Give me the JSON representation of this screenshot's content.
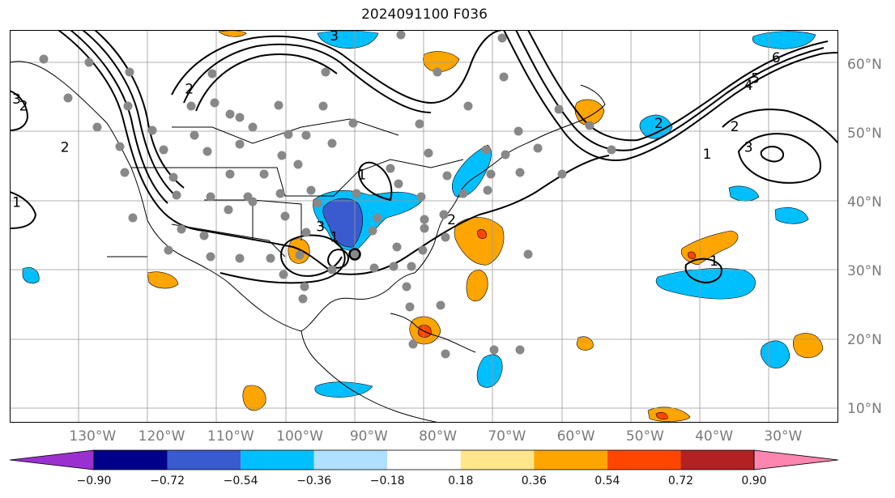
{
  "title": "2024091100 F036",
  "longitudes": [
    {
      "label": "130°W",
      "lon": -130
    },
    {
      "label": "120°W",
      "lon": -120
    },
    {
      "label": "110°W",
      "lon": -110
    },
    {
      "label": "100°W",
      "lon": -100
    },
    {
      "label": "90°W",
      "lon": -90
    },
    {
      "label": "80°W",
      "lon": -80
    },
    {
      "label": "70°W",
      "lon": -70
    },
    {
      "label": "60°W",
      "lon": -60
    },
    {
      "label": "50°W",
      "lon": -50
    },
    {
      "label": "40°W",
      "lon": -40
    },
    {
      "label": "30°W",
      "lon": -30
    }
  ],
  "latitudes": [
    {
      "label": "60°N",
      "lat": 60
    },
    {
      "label": "50°N",
      "lat": 50
    },
    {
      "label": "40°N",
      "lat": 40
    },
    {
      "label": "30°N",
      "lat": 30
    },
    {
      "label": "20°N",
      "lat": 20
    },
    {
      "label": "10°N",
      "lat": 10
    }
  ],
  "extent": {
    "lon": [
      -142,
      -22
    ],
    "lat": [
      8,
      65
    ]
  },
  "colorbar": {
    "levels": [
      "−0.90",
      "−0.72",
      "−0.54",
      "−0.36",
      "−0.18",
      "0.18",
      "0.36",
      "0.54",
      "0.72",
      "0.90"
    ],
    "colors": [
      "#9b30d0",
      "#00008b",
      "#3a5bd0",
      "#00bfff",
      "#afe0ff",
      "#ffffff",
      "#ffe68a",
      "#ffa500",
      "#ff4500",
      "#b22222",
      "#ff85b0"
    ]
  },
  "contour_labels": [
    {
      "text": "3",
      "lon": -95,
      "lat": 64.2
    },
    {
      "text": "2",
      "lon": -116,
      "lat": 56.5
    },
    {
      "text": "1",
      "lon": -91,
      "lat": 44
    },
    {
      "text": "2",
      "lon": -78,
      "lat": 37.5
    },
    {
      "text": "3",
      "lon": -97,
      "lat": 36.5
    },
    {
      "text": "1",
      "lon": -95,
      "lat": 35
    },
    {
      "text": "1",
      "lon": -40,
      "lat": 31.5
    },
    {
      "text": "2",
      "lon": -37,
      "lat": 51
    },
    {
      "text": "3",
      "lon": -35,
      "lat": 48
    },
    {
      "text": "1",
      "lon": -41,
      "lat": 47
    },
    {
      "text": "2",
      "lon": -48,
      "lat": 51.5
    },
    {
      "text": "5",
      "lon": -34,
      "lat": 58
    },
    {
      "text": "6",
      "lon": -31,
      "lat": 61
    },
    {
      "text": "4",
      "lon": -35,
      "lat": 57
    },
    {
      "text": "2",
      "lon": -140,
      "lat": 54
    },
    {
      "text": "3",
      "lon": -141,
      "lat": 55
    },
    {
      "text": "1",
      "lon": -141,
      "lat": 40
    },
    {
      "text": "2",
      "lon": -134,
      "lat": 48
    }
  ]
}
